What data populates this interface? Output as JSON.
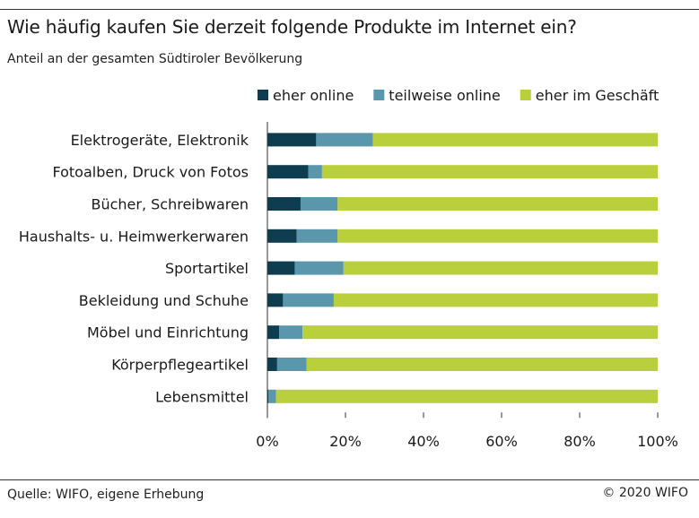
{
  "header": {
    "title": "Wie häufig kaufen Sie derzeit folgende Produkte im Internet ein?",
    "subtitle": "Anteil an der gesamten Südtiroler Bevölkerung"
  },
  "footer": {
    "source": "Quelle: WIFO, eigene Erhebung",
    "copyright": "© 2020 WIFO"
  },
  "chart_data": {
    "type": "bar",
    "orientation": "horizontal",
    "stacked": true,
    "title": "Wie häufig kaufen Sie derzeit folgende Produkte im Internet ein?",
    "subtitle": "Anteil an der gesamten Südtiroler Bevölkerung",
    "categories": [
      "Elektrogeräte, Elektronik",
      "Fotoalben, Druck von Fotos",
      "Bücher, Schreibwaren",
      "Haushalts- u. Heimwerkerwaren",
      "Sportartikel",
      "Bekleidung und Schuhe",
      "Möbel und Einrichtung",
      "Körperpflegeartikel",
      "Lebensmittel"
    ],
    "series": [
      {
        "name": "eher online",
        "color": "#0d3d4f",
        "values": [
          12.5,
          10.5,
          8.5,
          7.5,
          7.0,
          4.0,
          3.0,
          2.5,
          0.3
        ]
      },
      {
        "name": "teilweise online",
        "color": "#5a97ad",
        "values": [
          14.5,
          3.5,
          9.5,
          10.5,
          12.5,
          13.0,
          6.0,
          7.5,
          1.9
        ]
      },
      {
        "name": "eher im Geschäft",
        "color": "#b9cf3c",
        "values": [
          73.0,
          86.0,
          82.0,
          82.0,
          80.5,
          83.0,
          91.0,
          90.0,
          97.8
        ]
      }
    ],
    "x_ticks": [
      "0%",
      "20%",
      "40%",
      "60%",
      "80%",
      "100%"
    ],
    "xlim": [
      0,
      100
    ],
    "legend": "top",
    "grid": false
  }
}
